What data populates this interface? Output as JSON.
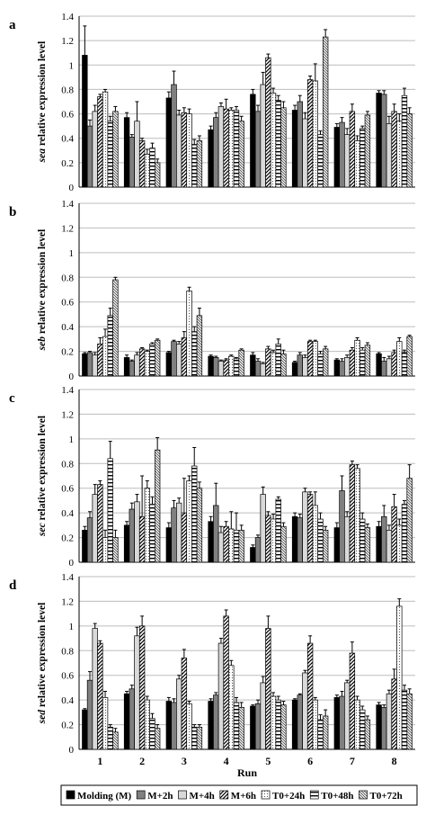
{
  "chart_data": [
    {
      "type": "bar",
      "panel_label": "a",
      "gene": "sea",
      "ylabel_suffix": " relative expression level",
      "ylim": [
        0,
        1.4
      ],
      "yticks": [
        "0",
        "0.2",
        "0.4",
        "0.6",
        "0.8",
        "1",
        "1.2",
        "1.4"
      ],
      "grid": true,
      "categories": [
        "1",
        "2",
        "3",
        "4",
        "5",
        "6",
        "7",
        "8"
      ],
      "series": [
        {
          "name": "Molding (M)",
          "values": [
            1.08,
            0.57,
            0.73,
            0.47,
            0.76,
            0.63,
            0.49,
            0.77
          ],
          "errors": [
            0.24,
            0.04,
            0.05,
            0.03,
            0.04,
            0.04,
            0.03,
            0.02
          ]
        },
        {
          "name": "M+2h",
          "values": [
            0.5,
            0.41,
            0.84,
            0.57,
            0.62,
            0.7,
            0.53,
            0.76
          ],
          "errors": [
            0.05,
            0.02,
            0.11,
            0.04,
            0.05,
            0.05,
            0.04,
            0.03
          ]
        },
        {
          "name": "M+4h",
          "values": [
            0.62,
            0.54,
            0.59,
            0.66,
            0.84,
            0.56,
            0.43,
            0.52
          ],
          "errors": [
            0.05,
            0.16,
            0.04,
            0.03,
            0.1,
            0.05,
            0.05,
            0.06
          ]
        },
        {
          "name": "M+6h",
          "values": [
            0.74,
            0.38,
            0.61,
            0.64,
            1.06,
            0.88,
            0.62,
            0.62
          ],
          "errors": [
            0.02,
            0.02,
            0.04,
            0.08,
            0.03,
            0.03,
            0.06,
            0.06
          ]
        },
        {
          "name": "T0+24h",
          "values": [
            0.78,
            0.27,
            0.6,
            0.63,
            0.77,
            0.87,
            0.38,
            0.54
          ],
          "errors": [
            0.02,
            0.04,
            0.04,
            0.02,
            0.04,
            0.14,
            0.04,
            0.06
          ]
        },
        {
          "name": "T0+48h",
          "values": [
            0.54,
            0.32,
            0.35,
            0.63,
            0.71,
            0.43,
            0.48,
            0.75
          ],
          "errors": [
            0.04,
            0.04,
            0.04,
            0.03,
            0.04,
            0.03,
            0.02,
            0.06
          ]
        },
        {
          "name": "T0+72h",
          "values": [
            0.62,
            0.2,
            0.38,
            0.54,
            0.65,
            1.23,
            0.59,
            0.6
          ],
          "errors": [
            0.04,
            0.03,
            0.04,
            0.04,
            0.05,
            0.06,
            0.03,
            0.05
          ]
        }
      ]
    },
    {
      "type": "bar",
      "panel_label": "b",
      "gene": "seb",
      "ylabel_suffix": " relative expression level",
      "ylim": [
        0,
        1.4
      ],
      "yticks": [
        "0",
        "0.2",
        "0.4",
        "0.6",
        "0.8",
        "1",
        "1.2",
        "1.4"
      ],
      "grid": true,
      "categories": [
        "1",
        "2",
        "3",
        "4",
        "5",
        "6",
        "7",
        "8"
      ],
      "series": [
        {
          "name": "Molding (M)",
          "values": [
            0.18,
            0.15,
            0.19,
            0.16,
            0.17,
            0.11,
            0.13,
            0.18
          ],
          "errors": [
            0.01,
            0.02,
            0.01,
            0.01,
            0.02,
            0.01,
            0.01,
            0.01
          ]
        },
        {
          "name": "M+2h",
          "values": [
            0.19,
            0.12,
            0.28,
            0.15,
            0.12,
            0.17,
            0.12,
            0.12
          ],
          "errors": [
            0.01,
            0.01,
            0.01,
            0.01,
            0.02,
            0.02,
            0.02,
            0.03
          ]
        },
        {
          "name": "M+4h",
          "values": [
            0.17,
            0.17,
            0.26,
            0.12,
            0.1,
            0.15,
            0.15,
            0.14
          ],
          "errors": [
            0.02,
            0.02,
            0.02,
            0.01,
            0.01,
            0.02,
            0.02,
            0.02
          ]
        },
        {
          "name": "M+6h",
          "values": [
            0.26,
            0.22,
            0.31,
            0.13,
            0.22,
            0.28,
            0.21,
            0.19
          ],
          "errors": [
            0.05,
            0.01,
            0.05,
            0.01,
            0.02,
            0.01,
            0.02,
            0.02
          ]
        },
        {
          "name": "T0+24h",
          "values": [
            0.32,
            0.2,
            0.69,
            0.16,
            0.19,
            0.28,
            0.29,
            0.28
          ],
          "errors": [
            0.06,
            0.01,
            0.03,
            0.01,
            0.02,
            0.01,
            0.02,
            0.03
          ]
        },
        {
          "name": "T0+48h",
          "values": [
            0.49,
            0.26,
            0.36,
            0.14,
            0.26,
            0.18,
            0.21,
            0.19
          ],
          "errors": [
            0.06,
            0.01,
            0.04,
            0.01,
            0.04,
            0.02,
            0.02,
            0.02
          ]
        },
        {
          "name": "T0+72h",
          "values": [
            0.78,
            0.29,
            0.49,
            0.21,
            0.18,
            0.22,
            0.25,
            0.32
          ],
          "errors": [
            0.02,
            0.01,
            0.06,
            0.01,
            0.03,
            0.02,
            0.02,
            0.01
          ]
        }
      ]
    },
    {
      "type": "bar",
      "panel_label": "c",
      "gene": "sec",
      "ylabel_suffix": " relative expression level",
      "ylim": [
        0,
        1.4
      ],
      "yticks": [
        "0",
        "0.2",
        "0.4",
        "0.6",
        "0.8",
        "1",
        "1.2",
        "1.4"
      ],
      "grid": true,
      "categories": [
        "1",
        "2",
        "3",
        "4",
        "5",
        "6",
        "7",
        "8"
      ],
      "series": [
        {
          "name": "Molding (M)",
          "values": [
            0.26,
            0.3,
            0.28,
            0.33,
            0.12,
            0.37,
            0.28,
            0.29
          ],
          "errors": [
            0.03,
            0.03,
            0.04,
            0.04,
            0.02,
            0.03,
            0.04,
            0.04
          ]
        },
        {
          "name": "M+2h",
          "values": [
            0.36,
            0.43,
            0.44,
            0.46,
            0.2,
            0.36,
            0.58,
            0.37
          ],
          "errors": [
            0.05,
            0.05,
            0.06,
            0.18,
            0.02,
            0.03,
            0.12,
            0.09
          ]
        },
        {
          "name": "M+4h",
          "values": [
            0.55,
            0.49,
            0.48,
            0.24,
            0.55,
            0.57,
            0.37,
            0.26
          ],
          "errors": [
            0.08,
            0.06,
            0.04,
            0.05,
            0.06,
            0.03,
            0.04,
            0.04
          ]
        },
        {
          "name": "M+6h",
          "values": [
            0.63,
            0.37,
            0.4,
            0.29,
            0.38,
            0.55,
            0.79,
            0.45
          ],
          "errors": [
            0.03,
            0.33,
            0.28,
            0.04,
            0.03,
            0.02,
            0.03,
            0.1
          ]
        },
        {
          "name": "T0+24h",
          "values": [
            0.2,
            0.6,
            0.66,
            0.27,
            0.35,
            0.46,
            0.76,
            0.3
          ],
          "errors": [
            0.06,
            0.06,
            0.04,
            0.14,
            0.04,
            0.11,
            0.03,
            0.05
          ]
        },
        {
          "name": "T0+48h",
          "values": [
            0.84,
            0.47,
            0.78,
            0.26,
            0.51,
            0.35,
            0.35,
            0.47
          ],
          "errors": [
            0.14,
            0.06,
            0.15,
            0.14,
            0.02,
            0.05,
            0.05,
            0.03
          ]
        },
        {
          "name": "T0+72h",
          "values": [
            0.2,
            0.91,
            0.6,
            0.26,
            0.29,
            0.26,
            0.28,
            0.68
          ],
          "errors": [
            0.06,
            0.1,
            0.05,
            0.04,
            0.03,
            0.03,
            0.03,
            0.11
          ]
        }
      ]
    },
    {
      "type": "bar",
      "panel_label": "d",
      "gene": "sed",
      "ylabel_suffix": " relative expression level",
      "ylim": [
        0,
        1.4
      ],
      "yticks": [
        "0",
        "0.2",
        "0.4",
        "0.6",
        "0.8",
        "1",
        "1.2",
        "1.4"
      ],
      "grid": true,
      "xlabel": "Run",
      "categories": [
        "1",
        "2",
        "3",
        "4",
        "5",
        "6",
        "7",
        "8"
      ],
      "series": [
        {
          "name": "Molding (M)",
          "values": [
            0.32,
            0.45,
            0.39,
            0.39,
            0.35,
            0.4,
            0.42,
            0.36
          ],
          "errors": [
            0.01,
            0.02,
            0.03,
            0.02,
            0.01,
            0.01,
            0.02,
            0.02
          ]
        },
        {
          "name": "M+2h",
          "values": [
            0.56,
            0.49,
            0.38,
            0.44,
            0.37,
            0.44,
            0.43,
            0.34
          ],
          "errors": [
            0.07,
            0.03,
            0.03,
            0.02,
            0.03,
            0.01,
            0.04,
            0.02
          ]
        },
        {
          "name": "M+4h",
          "values": [
            0.98,
            0.92,
            0.57,
            0.86,
            0.54,
            0.62,
            0.54,
            0.45
          ],
          "errors": [
            0.04,
            0.07,
            0.03,
            0.04,
            0.05,
            0.02,
            0.02,
            0.03
          ]
        },
        {
          "name": "M+6h",
          "values": [
            0.86,
            1.0,
            0.74,
            1.08,
            0.98,
            0.86,
            0.78,
            0.57
          ],
          "errors": [
            0.02,
            0.08,
            0.07,
            0.05,
            0.1,
            0.06,
            0.09,
            0.08
          ]
        },
        {
          "name": "T0+24h",
          "values": [
            0.42,
            0.4,
            0.37,
            0.68,
            0.43,
            0.4,
            0.4,
            1.16
          ],
          "errors": [
            0.05,
            0.03,
            0.02,
            0.04,
            0.03,
            0.02,
            0.03,
            0.06
          ]
        },
        {
          "name": "T0+48h",
          "values": [
            0.18,
            0.25,
            0.18,
            0.38,
            0.4,
            0.24,
            0.32,
            0.48
          ],
          "errors": [
            0.02,
            0.04,
            0.02,
            0.04,
            0.03,
            0.04,
            0.03,
            0.04
          ]
        },
        {
          "name": "T0+72h",
          "values": [
            0.14,
            0.17,
            0.18,
            0.34,
            0.36,
            0.27,
            0.24,
            0.45
          ],
          "errors": [
            0.03,
            0.03,
            0.02,
            0.04,
            0.03,
            0.05,
            0.03,
            0.04
          ]
        }
      ]
    }
  ],
  "legend": {
    "placement": "bottom",
    "items": [
      {
        "label": "Molding (M)",
        "pattern": "solid-black"
      },
      {
        "label": "M+2h",
        "pattern": "dark-gray"
      },
      {
        "label": "M+4h",
        "pattern": "light-gray"
      },
      {
        "label": "M+6h",
        "pattern": "diagonal-hatch"
      },
      {
        "label": "T0+24h",
        "pattern": "dotted"
      },
      {
        "label": "T0+48h",
        "pattern": "horizontal-stripes"
      },
      {
        "label": "T0+72h",
        "pattern": "fine-diagonal"
      }
    ]
  },
  "colors": {
    "bar_outline": "#000000",
    "grid": "#bdbdbd",
    "solid": "#000000",
    "dark_gray": "#808080",
    "light_gray": "#d9d9d9"
  }
}
